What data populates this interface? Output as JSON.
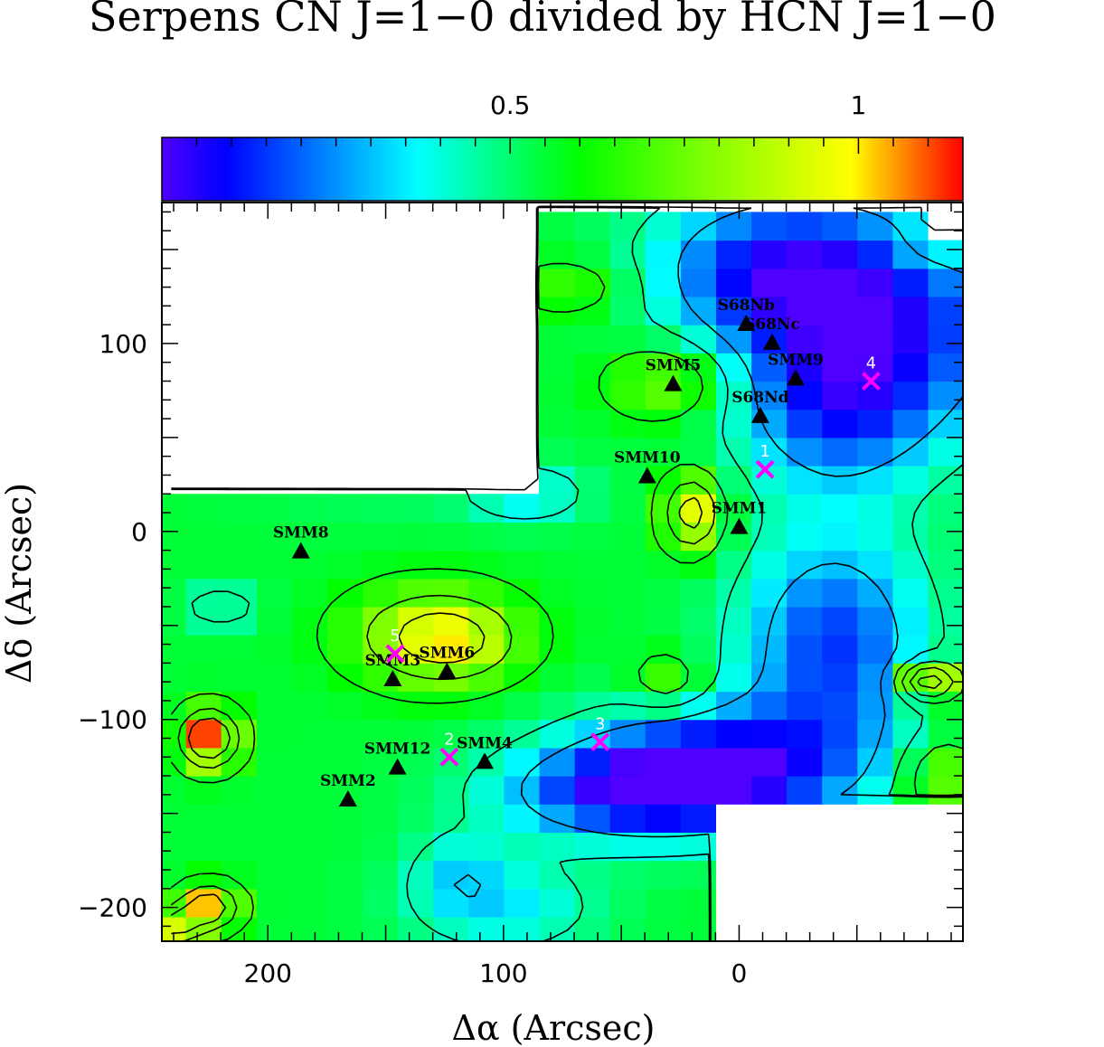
{
  "chart_data": {
    "type": "heatmap",
    "title": "Serpens CN J=1−0 divided by HCN J=1−0",
    "xlabel": "Δα (Arcsec)",
    "ylabel": "Δδ (Arcsec)",
    "x_range": [
      245,
      -95
    ],
    "y_range": [
      -218,
      175
    ],
    "x_ticks": [
      200,
      100,
      0
    ],
    "y_ticks": [
      100,
      0,
      -100,
      -200
    ],
    "colorbar": {
      "range": [
        0.0,
        1.15
      ],
      "ticks": [
        0.5,
        1
      ],
      "tick_labels": [
        "0.5",
        "1"
      ],
      "colors": [
        "#5000ff",
        "#0000ff",
        "#00ffff",
        "#00ff00",
        "#ffff00",
        "#ff0000"
      ]
    },
    "cell_size_arcsec": 15,
    "sources": [
      {
        "name": "SMM8",
        "x": 186,
        "y": -10
      },
      {
        "name": "SMM3",
        "x": 147,
        "y": -78
      },
      {
        "name": "SMM6",
        "x": 124,
        "y": -74
      },
      {
        "name": "SMM12",
        "x": 145,
        "y": -125
      },
      {
        "name": "SMM4",
        "x": 108,
        "y": -122
      },
      {
        "name": "SMM2",
        "x": 166,
        "y": -142
      },
      {
        "name": "SMM5",
        "x": 28,
        "y": 79
      },
      {
        "name": "SMM10",
        "x": 39,
        "y": 30
      },
      {
        "name": "SMM1",
        "x": 0,
        "y": 3
      },
      {
        "name": "S68Nb",
        "x": -3,
        "y": 111
      },
      {
        "name": "S68Nc",
        "x": -14,
        "y": 101
      },
      {
        "name": "SMM9",
        "x": -24,
        "y": 82
      },
      {
        "name": "S68Nd",
        "x": -9,
        "y": 62
      }
    ],
    "positions": [
      {
        "label": "1",
        "x": -11,
        "y": 33
      },
      {
        "label": "2",
        "x": 123,
        "y": -120
      },
      {
        "label": "3",
        "x": 59,
        "y": -112
      },
      {
        "label": "4",
        "x": -56,
        "y": 80
      },
      {
        "label": "5",
        "x": 146,
        "y": -65
      }
    ]
  }
}
